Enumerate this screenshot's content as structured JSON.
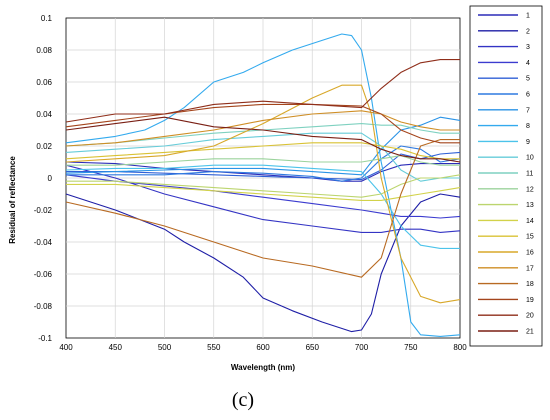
{
  "chart_data": {
    "type": "line",
    "xlabel": "Wavelength (nm)",
    "ylabel": "Residual of reflectance",
    "caption": "(c)",
    "xlim": [
      400,
      800
    ],
    "ylim": [
      -0.1,
      0.1
    ],
    "xticks": [
      400,
      450,
      500,
      550,
      600,
      650,
      700,
      750,
      800
    ],
    "yticks": [
      -0.1,
      -0.08,
      -0.06,
      -0.04,
      -0.02,
      0,
      0.02,
      0.04,
      0.06,
      0.08,
      0.1
    ],
    "ytick_labels": [
      "-0.1",
      "-0.08",
      "-0.06",
      "-0.04",
      "-0.02",
      "0",
      "0.02",
      "0.04",
      "0.06",
      "0.08",
      "0.1"
    ],
    "grid": true,
    "legend_position": "right",
    "series": [
      {
        "name": "1",
        "color": "#2b2bb8",
        "points": [
          [
            400,
            0.01
          ],
          [
            450,
            0.009
          ],
          [
            500,
            0.006
          ],
          [
            550,
            0.004
          ],
          [
            600,
            0.002
          ],
          [
            650,
            0.0
          ],
          [
            680,
            -0.002
          ],
          [
            700,
            -0.002
          ],
          [
            720,
            0.004
          ],
          [
            740,
            0.008
          ],
          [
            760,
            0.009
          ],
          [
            780,
            0.009
          ],
          [
            800,
            0.009
          ]
        ]
      },
      {
        "name": "2",
        "color": "#1e1ea6",
        "points": [
          [
            400,
            -0.01
          ],
          [
            450,
            -0.02
          ],
          [
            500,
            -0.032
          ],
          [
            520,
            -0.04
          ],
          [
            550,
            -0.05
          ],
          [
            580,
            -0.062
          ],
          [
            600,
            -0.075
          ],
          [
            630,
            -0.083
          ],
          [
            660,
            -0.09
          ],
          [
            690,
            -0.096
          ],
          [
            700,
            -0.095
          ],
          [
            710,
            -0.085
          ],
          [
            720,
            -0.06
          ],
          [
            740,
            -0.03
          ],
          [
            760,
            -0.015
          ],
          [
            780,
            -0.01
          ],
          [
            800,
            -0.012
          ]
        ]
      },
      {
        "name": "3",
        "color": "#3434c4",
        "points": [
          [
            400,
            0.008
          ],
          [
            450,
            0.0
          ],
          [
            500,
            -0.01
          ],
          [
            550,
            -0.018
          ],
          [
            600,
            -0.026
          ],
          [
            650,
            -0.03
          ],
          [
            700,
            -0.034
          ],
          [
            720,
            -0.034
          ],
          [
            740,
            -0.032
          ],
          [
            760,
            -0.032
          ],
          [
            780,
            -0.034
          ],
          [
            800,
            -0.033
          ]
        ]
      },
      {
        "name": "4",
        "color": "#3b3bcf",
        "points": [
          [
            400,
            0.002
          ],
          [
            450,
            -0.002
          ],
          [
            500,
            -0.005
          ],
          [
            550,
            -0.008
          ],
          [
            600,
            -0.012
          ],
          [
            650,
            -0.016
          ],
          [
            700,
            -0.02
          ],
          [
            720,
            -0.022
          ],
          [
            740,
            -0.024
          ],
          [
            760,
            -0.024
          ],
          [
            780,
            -0.025
          ],
          [
            800,
            -0.024
          ]
        ]
      },
      {
        "name": "5",
        "color": "#2f5fd6",
        "points": [
          [
            400,
            0.004
          ],
          [
            450,
            0.004
          ],
          [
            500,
            0.003
          ],
          [
            550,
            0.002
          ],
          [
            600,
            0.001
          ],
          [
            650,
            0.0
          ],
          [
            700,
            -0.001
          ],
          [
            720,
            0.005
          ],
          [
            740,
            0.015
          ],
          [
            760,
            0.012
          ],
          [
            780,
            0.015
          ],
          [
            800,
            0.016
          ]
        ]
      },
      {
        "name": "6",
        "color": "#2f7ae0",
        "points": [
          [
            400,
            0.002
          ],
          [
            450,
            0.002
          ],
          [
            500,
            0.002
          ],
          [
            550,
            0.004
          ],
          [
            600,
            0.003
          ],
          [
            650,
            0.001
          ],
          [
            680,
            -0.002
          ],
          [
            700,
            0.0
          ],
          [
            720,
            0.012
          ],
          [
            740,
            0.02
          ],
          [
            760,
            0.018
          ],
          [
            780,
            0.01
          ],
          [
            800,
            0.012
          ]
        ]
      },
      {
        "name": "7",
        "color": "#2a93e6",
        "points": [
          [
            400,
            0.003
          ],
          [
            450,
            0.004
          ],
          [
            500,
            0.005
          ],
          [
            550,
            0.006
          ],
          [
            600,
            0.006
          ],
          [
            650,
            0.004
          ],
          [
            700,
            0.002
          ],
          [
            720,
            0.018
          ],
          [
            740,
            0.03
          ],
          [
            760,
            0.033
          ],
          [
            780,
            0.038
          ],
          [
            800,
            0.036
          ]
        ]
      },
      {
        "name": "8",
        "color": "#33aaee",
        "points": [
          [
            400,
            0.022
          ],
          [
            450,
            0.026
          ],
          [
            480,
            0.03
          ],
          [
            500,
            0.036
          ],
          [
            520,
            0.044
          ],
          [
            550,
            0.06
          ],
          [
            580,
            0.066
          ],
          [
            600,
            0.072
          ],
          [
            630,
            0.08
          ],
          [
            660,
            0.086
          ],
          [
            680,
            0.09
          ],
          [
            690,
            0.089
          ],
          [
            700,
            0.08
          ],
          [
            710,
            0.05
          ],
          [
            720,
            0.01
          ],
          [
            740,
            -0.05
          ],
          [
            750,
            -0.09
          ],
          [
            760,
            -0.098
          ],
          [
            780,
            -0.099
          ],
          [
            800,
            -0.098
          ]
        ]
      },
      {
        "name": "9",
        "color": "#4cc3ea",
        "points": [
          [
            400,
            0.005
          ],
          [
            450,
            0.006
          ],
          [
            500,
            0.006
          ],
          [
            550,
            0.008
          ],
          [
            600,
            0.008
          ],
          [
            650,
            0.006
          ],
          [
            700,
            0.004
          ],
          [
            720,
            -0.01
          ],
          [
            740,
            -0.03
          ],
          [
            760,
            -0.042
          ],
          [
            780,
            -0.044
          ],
          [
            800,
            -0.044
          ]
        ]
      },
      {
        "name": "10",
        "color": "#66ccd9",
        "points": [
          [
            400,
            0.016
          ],
          [
            450,
            0.018
          ],
          [
            500,
            0.02
          ],
          [
            550,
            0.024
          ],
          [
            600,
            0.026
          ],
          [
            650,
            0.028
          ],
          [
            700,
            0.028
          ],
          [
            720,
            0.02
          ],
          [
            740,
            0.005
          ],
          [
            760,
            -0.002
          ],
          [
            780,
            0.0
          ],
          [
            800,
            0.0
          ]
        ]
      },
      {
        "name": "11",
        "color": "#7fd1c0",
        "points": [
          [
            400,
            0.02
          ],
          [
            450,
            0.022
          ],
          [
            500,
            0.025
          ],
          [
            550,
            0.028
          ],
          [
            600,
            0.03
          ],
          [
            650,
            0.032
          ],
          [
            700,
            0.034
          ],
          [
            720,
            0.033
          ],
          [
            740,
            0.033
          ],
          [
            760,
            0.03
          ],
          [
            780,
            0.028
          ],
          [
            800,
            0.028
          ]
        ]
      },
      {
        "name": "12",
        "color": "#9bd39c",
        "points": [
          [
            400,
            0.008
          ],
          [
            450,
            0.008
          ],
          [
            500,
            0.01
          ],
          [
            550,
            0.012
          ],
          [
            600,
            0.012
          ],
          [
            650,
            0.01
          ],
          [
            700,
            0.01
          ],
          [
            720,
            0.012
          ],
          [
            740,
            0.014
          ],
          [
            760,
            0.01
          ],
          [
            780,
            0.008
          ],
          [
            800,
            0.008
          ]
        ]
      },
      {
        "name": "13",
        "color": "#bcd56e",
        "points": [
          [
            400,
            -0.002
          ],
          [
            450,
            -0.002
          ],
          [
            500,
            -0.004
          ],
          [
            550,
            -0.006
          ],
          [
            600,
            -0.008
          ],
          [
            650,
            -0.01
          ],
          [
            700,
            -0.012
          ],
          [
            720,
            -0.01
          ],
          [
            740,
            -0.004
          ],
          [
            760,
            0.0
          ],
          [
            780,
            0.0
          ],
          [
            800,
            0.002
          ]
        ]
      },
      {
        "name": "14",
        "color": "#d2d24a",
        "points": [
          [
            400,
            -0.004
          ],
          [
            450,
            -0.004
          ],
          [
            500,
            -0.006
          ],
          [
            550,
            -0.008
          ],
          [
            600,
            -0.01
          ],
          [
            650,
            -0.012
          ],
          [
            700,
            -0.014
          ],
          [
            720,
            -0.014
          ],
          [
            740,
            -0.012
          ],
          [
            760,
            -0.01
          ],
          [
            780,
            -0.008
          ],
          [
            800,
            -0.006
          ]
        ]
      },
      {
        "name": "15",
        "color": "#d9c234",
        "points": [
          [
            400,
            0.012
          ],
          [
            450,
            0.014
          ],
          [
            500,
            0.016
          ],
          [
            550,
            0.018
          ],
          [
            600,
            0.02
          ],
          [
            650,
            0.022
          ],
          [
            700,
            0.022
          ],
          [
            720,
            0.02
          ],
          [
            740,
            0.018
          ],
          [
            760,
            0.014
          ],
          [
            780,
            0.012
          ],
          [
            800,
            0.012
          ]
        ]
      },
      {
        "name": "16",
        "color": "#d8a82a",
        "points": [
          [
            400,
            0.01
          ],
          [
            450,
            0.012
          ],
          [
            500,
            0.014
          ],
          [
            550,
            0.02
          ],
          [
            600,
            0.034
          ],
          [
            650,
            0.05
          ],
          [
            680,
            0.058
          ],
          [
            700,
            0.058
          ],
          [
            710,
            0.04
          ],
          [
            720,
            0.0
          ],
          [
            740,
            -0.05
          ],
          [
            760,
            -0.074
          ],
          [
            780,
            -0.078
          ],
          [
            800,
            -0.076
          ]
        ]
      },
      {
        "name": "17",
        "color": "#cf8e25",
        "points": [
          [
            400,
            0.02
          ],
          [
            450,
            0.022
          ],
          [
            500,
            0.026
          ],
          [
            550,
            0.03
          ],
          [
            600,
            0.036
          ],
          [
            650,
            0.04
          ],
          [
            700,
            0.042
          ],
          [
            720,
            0.04
          ],
          [
            740,
            0.035
          ],
          [
            760,
            0.032
          ],
          [
            780,
            0.03
          ],
          [
            800,
            0.03
          ]
        ]
      },
      {
        "name": "18",
        "color": "#b86a22",
        "points": [
          [
            400,
            -0.015
          ],
          [
            450,
            -0.022
          ],
          [
            500,
            -0.03
          ],
          [
            550,
            -0.04
          ],
          [
            600,
            -0.05
          ],
          [
            650,
            -0.055
          ],
          [
            700,
            -0.062
          ],
          [
            720,
            -0.05
          ],
          [
            740,
            -0.01
          ],
          [
            760,
            0.02
          ],
          [
            780,
            0.024
          ],
          [
            800,
            0.024
          ]
        ]
      },
      {
        "name": "19",
        "color": "#a4451c",
        "points": [
          [
            400,
            0.032
          ],
          [
            450,
            0.036
          ],
          [
            500,
            0.04
          ],
          [
            550,
            0.044
          ],
          [
            600,
            0.046
          ],
          [
            650,
            0.046
          ],
          [
            700,
            0.045
          ],
          [
            720,
            0.04
          ],
          [
            740,
            0.03
          ],
          [
            760,
            0.025
          ],
          [
            780,
            0.022
          ],
          [
            800,
            0.022
          ]
        ]
      },
      {
        "name": "20",
        "color": "#8f2e1a",
        "points": [
          [
            400,
            0.035
          ],
          [
            450,
            0.04
          ],
          [
            500,
            0.04
          ],
          [
            550,
            0.046
          ],
          [
            600,
            0.048
          ],
          [
            650,
            0.046
          ],
          [
            700,
            0.044
          ],
          [
            720,
            0.056
          ],
          [
            740,
            0.066
          ],
          [
            760,
            0.072
          ],
          [
            780,
            0.074
          ],
          [
            800,
            0.074
          ]
        ]
      },
      {
        "name": "21",
        "color": "#7a1f14",
        "points": [
          [
            400,
            0.03
          ],
          [
            450,
            0.034
          ],
          [
            500,
            0.038
          ],
          [
            550,
            0.032
          ],
          [
            600,
            0.03
          ],
          [
            650,
            0.026
          ],
          [
            700,
            0.024
          ],
          [
            720,
            0.018
          ],
          [
            740,
            0.014
          ],
          [
            760,
            0.012
          ],
          [
            780,
            0.012
          ],
          [
            800,
            0.01
          ]
        ]
      }
    ]
  }
}
